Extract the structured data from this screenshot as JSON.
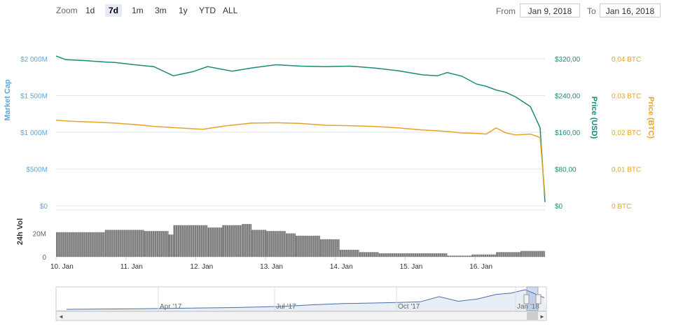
{
  "zoom": {
    "label": "Zoom",
    "buttons": [
      "1d",
      "7d",
      "1m",
      "3m",
      "1y",
      "YTD",
      "ALL"
    ],
    "selected": "7d"
  },
  "range": {
    "from_label": "From",
    "from_value": "Jan 9, 2018",
    "to_label": "To",
    "to_value": "Jan 16, 2018"
  },
  "colors": {
    "usd": "#1a8a7a",
    "btc": "#e8a227",
    "cap": "#5ea6d6",
    "vol": "#7d7d7d",
    "nav": "#4a6fa5"
  },
  "chart_data": {
    "type": "line",
    "x_ticks": [
      "10. Jan",
      "11. Jan",
      "12. Jan",
      "13. Jan",
      "14. Jan",
      "15. Jan",
      "16. Jan"
    ],
    "axes": {
      "market_cap": {
        "label": "Market Cap",
        "ticks": [
          "$0",
          "$500M",
          "$1 000M",
          "$1 500M",
          "$2 000M"
        ],
        "range": [
          0,
          2000
        ]
      },
      "price_usd": {
        "label": "Price (USD)",
        "ticks": [
          "$0",
          "$80,00",
          "$160,00",
          "$240,00",
          "$320,00"
        ],
        "range": [
          0,
          320
        ]
      },
      "price_btc": {
        "label": "Price (BTC)",
        "ticks": [
          "0 BTC",
          "0,01 BTC",
          "0,02 BTC",
          "0,03 BTC",
          "0,04 BTC"
        ],
        "range": [
          0,
          0.04
        ]
      },
      "volume": {
        "label": "24h Vol",
        "ticks": [
          "0",
          "20M"
        ],
        "range": [
          0,
          40
        ]
      }
    },
    "series": [
      {
        "name": "Price (USD)",
        "x": [
          0,
          0.02,
          0.06,
          0.1,
          0.12,
          0.16,
          0.2,
          0.24,
          0.28,
          0.31,
          0.36,
          0.4,
          0.45,
          0.5,
          0.55,
          0.6,
          0.65,
          0.7,
          0.75,
          0.78,
          0.8,
          0.83,
          0.86,
          0.88,
          0.9,
          0.92,
          0.94,
          0.97,
          0.99,
          1.0
        ],
        "values": [
          326,
          318,
          316,
          313,
          312,
          307,
          303,
          283,
          292,
          303,
          293,
          300,
          307,
          304,
          303,
          304,
          300,
          294,
          285,
          283,
          290,
          282,
          265,
          260,
          252,
          247,
          237,
          216,
          170,
          8
        ]
      },
      {
        "name": "Price (BTC)",
        "x": [
          0,
          0.03,
          0.07,
          0.12,
          0.17,
          0.2,
          0.25,
          0.3,
          0.35,
          0.4,
          0.45,
          0.5,
          0.55,
          0.6,
          0.65,
          0.7,
          0.75,
          0.78,
          0.8,
          0.83,
          0.86,
          0.88,
          0.9,
          0.92,
          0.94,
          0.97,
          0.99,
          1.0
        ],
        "values": [
          0.0233,
          0.023,
          0.0228,
          0.0225,
          0.022,
          0.0216,
          0.0212,
          0.0208,
          0.0218,
          0.0225,
          0.0226,
          0.0224,
          0.0219,
          0.0218,
          0.0216,
          0.0212,
          0.0206,
          0.0204,
          0.0202,
          0.0198,
          0.0197,
          0.0195,
          0.0212,
          0.0198,
          0.0193,
          0.0195,
          0.0186,
          0.0028
        ]
      }
    ],
    "volume_segments": [
      {
        "from": 0,
        "to": 0.1,
        "value": 21
      },
      {
        "from": 0.1,
        "to": 0.18,
        "value": 23
      },
      {
        "from": 0.18,
        "to": 0.23,
        "value": 22
      },
      {
        "from": 0.23,
        "to": 0.24,
        "value": 19
      },
      {
        "from": 0.24,
        "to": 0.31,
        "value": 27
      },
      {
        "from": 0.31,
        "to": 0.34,
        "value": 25
      },
      {
        "from": 0.34,
        "to": 0.38,
        "value": 27
      },
      {
        "from": 0.38,
        "to": 0.4,
        "value": 28
      },
      {
        "from": 0.4,
        "to": 0.43,
        "value": 23
      },
      {
        "from": 0.43,
        "to": 0.47,
        "value": 22
      },
      {
        "from": 0.47,
        "to": 0.49,
        "value": 20
      },
      {
        "from": 0.49,
        "to": 0.54,
        "value": 18
      },
      {
        "from": 0.54,
        "to": 0.58,
        "value": 15
      },
      {
        "from": 0.58,
        "to": 0.62,
        "value": 6
      },
      {
        "from": 0.62,
        "to": 0.66,
        "value": 4
      },
      {
        "from": 0.66,
        "to": 0.8,
        "value": 3
      },
      {
        "from": 0.8,
        "to": 0.85,
        "value": 1
      },
      {
        "from": 0.85,
        "to": 0.9,
        "value": 2
      },
      {
        "from": 0.9,
        "to": 0.95,
        "value": 4
      },
      {
        "from": 0.95,
        "to": 1.0,
        "value": 5
      }
    ],
    "navigator": {
      "ticks": [
        "Apr '17",
        "Jul '17",
        "Oct '17",
        "Jan '18"
      ],
      "x": [
        0,
        0.15,
        0.25,
        0.35,
        0.45,
        0.52,
        0.58,
        0.65,
        0.7,
        0.74,
        0.78,
        0.82,
        0.86,
        0.9,
        0.93,
        0.96,
        1.0
      ],
      "values": [
        0,
        1,
        2,
        3,
        5,
        8,
        10,
        11,
        12,
        13,
        22,
        14,
        18,
        26,
        28,
        34,
        20
      ]
    }
  }
}
